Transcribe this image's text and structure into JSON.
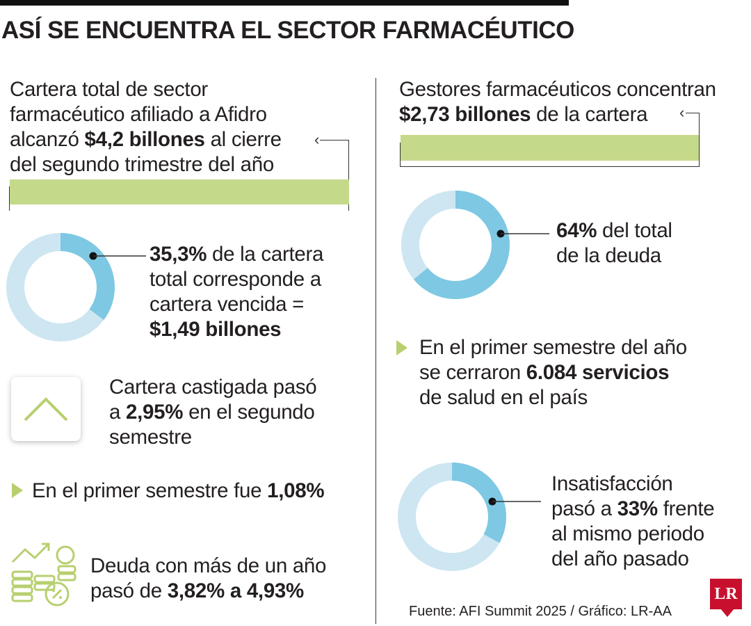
{
  "header": {
    "title": "ASÍ SE ENCUENTRA EL SECTOR FARMACÉUTICO"
  },
  "left": {
    "cartera": {
      "line1": "Cartera total de sector",
      "line2": "farmacéutico afiliado a Afidro",
      "line3_pre": "alcanzó ",
      "line3_bold": "$4,2 billones",
      "line3_post": " al cierre",
      "line4": "del segundo trimestre del año"
    },
    "vencida": {
      "percent": 35.3,
      "bold1": "35,3%",
      "line1_post": " de la cartera",
      "line2": "total corresponde a",
      "line3": "cartera vencida =",
      "bold2": "$1,49 billones"
    },
    "castigada": {
      "line1": "Cartera castigada pasó",
      "line2_pre": "a ",
      "bold": "2,95%",
      "line2_post": " en el segundo",
      "line3": "semestre"
    },
    "primer_semestre": {
      "pre": "En el primer semestre fue ",
      "bold": "1,08%"
    },
    "deuda": {
      "line1": "Deuda con más de un año",
      "line2_pre": "pasó de ",
      "bold": "3,82% a 4,93%"
    }
  },
  "right": {
    "gestores": {
      "line1": "Gestores farmacéuticos concentran",
      "bold": "$2,73 billones",
      "line2_post": " de la cartera"
    },
    "deuda_total": {
      "percent": 64,
      "bold": "64%",
      "line1_post": " del total",
      "line2": "de la deuda"
    },
    "servicios": {
      "line1": "En el primer semestre del año",
      "line2_pre": "se cerraron ",
      "bold": "6.084 servicios",
      "line3": "de salud en el país"
    },
    "insatisfaccion": {
      "percent": 33,
      "line1": "Insatisfacción",
      "line2_pre": "pasó a ",
      "bold": "33%",
      "line2_post": " frente",
      "line3": "al mismo periodo",
      "line4": "del año pasado"
    }
  },
  "footer": {
    "source": "Fuente: AFI Summit 2025 / Gráfico: LR-AA",
    "logo": "LR"
  },
  "colors": {
    "accent_green": "#c5d98a",
    "donut_dark": "#7ec8e3",
    "donut_light": "#cde6f1",
    "logo_red": "#c8102e"
  }
}
